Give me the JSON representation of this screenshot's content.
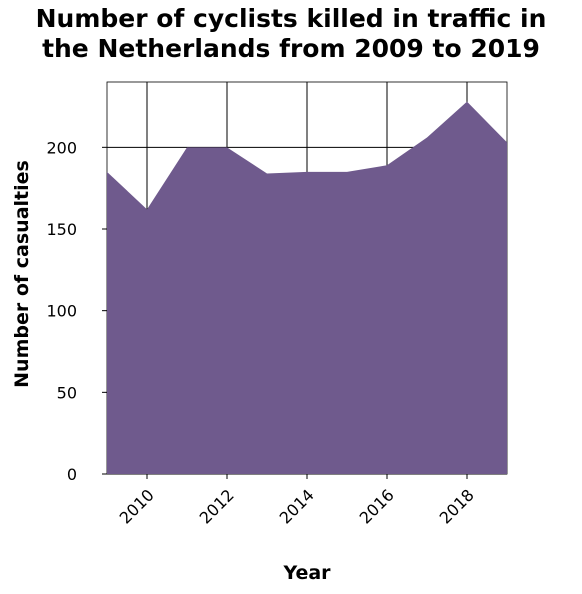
{
  "chart_data": {
    "type": "area",
    "title_lines": [
      "Number of cyclists killed in traffic in",
      "the Netherlands from 2009 to 2019"
    ],
    "xlabel": "Year",
    "ylabel": "Number of casualties",
    "x": [
      2009,
      2010,
      2011,
      2012,
      2013,
      2014,
      2015,
      2016,
      2017,
      2018,
      2019
    ],
    "values": [
      185,
      162,
      200,
      200,
      184,
      185,
      185,
      189,
      206,
      228,
      203
    ],
    "xlim": [
      2009,
      2019
    ],
    "ylim": [
      0,
      240
    ],
    "x_ticks": [
      "2010",
      "2012",
      "2014",
      "2016",
      "2018"
    ],
    "y_ticks": [
      "0",
      "50",
      "100",
      "150",
      "200"
    ],
    "grid": true,
    "fill_color": "#6f5a8d",
    "grid_color": "#000000"
  }
}
